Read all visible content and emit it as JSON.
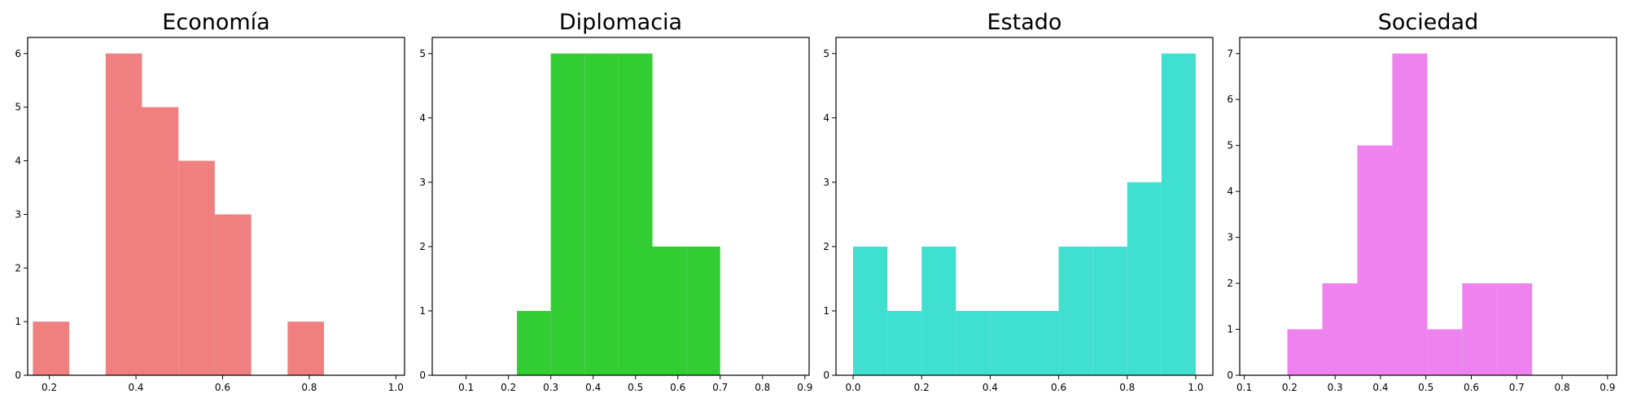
{
  "chart_data": [
    {
      "type": "histogram",
      "title": "Economía",
      "color": "#F08080",
      "xlim": [
        0.15,
        1.02
      ],
      "ylim": [
        0,
        6.3
      ],
      "xticks": [
        0.2,
        0.4,
        0.6,
        0.8,
        1.0
      ],
      "xtick_labels": [
        "0.2",
        "0.4",
        "0.6",
        "0.8",
        "1.0"
      ],
      "yticks": [
        0,
        1,
        2,
        3,
        4,
        5,
        6
      ],
      "ytick_labels": [
        "0",
        "1",
        "2",
        "3",
        "4",
        "5",
        "6"
      ],
      "bins": [
        {
          "x0": 0.162,
          "x1": 0.246,
          "count": 1
        },
        {
          "x0": 0.246,
          "x1": 0.33,
          "count": 0
        },
        {
          "x0": 0.33,
          "x1": 0.414,
          "count": 6
        },
        {
          "x0": 0.414,
          "x1": 0.498,
          "count": 5
        },
        {
          "x0": 0.498,
          "x1": 0.582,
          "count": 4
        },
        {
          "x0": 0.582,
          "x1": 0.666,
          "count": 3
        },
        {
          "x0": 0.666,
          "x1": 0.75,
          "count": 0
        },
        {
          "x0": 0.75,
          "x1": 0.834,
          "count": 1
        }
      ]
    },
    {
      "type": "histogram",
      "title": "Diplomacia",
      "color": "#32CD32",
      "xlim": [
        0.02,
        0.91
      ],
      "ylim": [
        0,
        5.25
      ],
      "xticks": [
        0.1,
        0.2,
        0.3,
        0.4,
        0.5,
        0.6,
        0.7,
        0.8,
        0.9
      ],
      "xtick_labels": [
        "0.1",
        "0.2",
        "0.3",
        "0.4",
        "0.5",
        "0.6",
        "0.7",
        "0.8",
        "0.9"
      ],
      "yticks": [
        0,
        1,
        2,
        3,
        4,
        5
      ],
      "ytick_labels": [
        "0",
        "1",
        "2",
        "3",
        "4",
        "5"
      ],
      "bins": [
        {
          "x0": 0.22,
          "x1": 0.3,
          "count": 1
        },
        {
          "x0": 0.3,
          "x1": 0.38,
          "count": 5
        },
        {
          "x0": 0.38,
          "x1": 0.46,
          "count": 5
        },
        {
          "x0": 0.46,
          "x1": 0.54,
          "count": 5
        },
        {
          "x0": 0.54,
          "x1": 0.62,
          "count": 2
        },
        {
          "x0": 0.62,
          "x1": 0.7,
          "count": 2
        }
      ]
    },
    {
      "type": "histogram",
      "title": "Estado",
      "color": "#40E0D0",
      "xlim": [
        -0.05,
        1.05
      ],
      "ylim": [
        0,
        5.25
      ],
      "xticks": [
        0.0,
        0.2,
        0.4,
        0.6,
        0.8,
        1.0
      ],
      "xtick_labels": [
        "0.0",
        "0.2",
        "0.4",
        "0.6",
        "0.8",
        "1.0"
      ],
      "yticks": [
        0,
        1,
        2,
        3,
        4,
        5
      ],
      "ytick_labels": [
        "0",
        "1",
        "2",
        "3",
        "4",
        "5"
      ],
      "bins": [
        {
          "x0": 0.0,
          "x1": 0.1,
          "count": 2
        },
        {
          "x0": 0.1,
          "x1": 0.2,
          "count": 1
        },
        {
          "x0": 0.2,
          "x1": 0.3,
          "count": 2
        },
        {
          "x0": 0.3,
          "x1": 0.4,
          "count": 1
        },
        {
          "x0": 0.4,
          "x1": 0.5,
          "count": 1
        },
        {
          "x0": 0.5,
          "x1": 0.6,
          "count": 1
        },
        {
          "x0": 0.6,
          "x1": 0.7,
          "count": 2
        },
        {
          "x0": 0.7,
          "x1": 0.8,
          "count": 2
        },
        {
          "x0": 0.8,
          "x1": 0.9,
          "count": 3
        },
        {
          "x0": 0.9,
          "x1": 1.0,
          "count": 5
        }
      ]
    },
    {
      "type": "histogram",
      "title": "Sociedad",
      "color": "#EE82EE",
      "xlim": [
        0.09,
        0.92
      ],
      "ylim": [
        0,
        7.35
      ],
      "xticks": [
        0.1,
        0.2,
        0.3,
        0.4,
        0.5,
        0.6,
        0.7,
        0.8,
        0.9
      ],
      "xtick_labels": [
        "0.1",
        "0.2",
        "0.3",
        "0.4",
        "0.5",
        "0.6",
        "0.7",
        "0.8",
        "0.9"
      ],
      "yticks": [
        0,
        1,
        2,
        3,
        4,
        5,
        6,
        7
      ],
      "ytick_labels": [
        "0",
        "1",
        "2",
        "3",
        "4",
        "5",
        "6",
        "7"
      ],
      "bins": [
        {
          "x0": 0.195,
          "x1": 0.272,
          "count": 1
        },
        {
          "x0": 0.272,
          "x1": 0.349,
          "count": 2
        },
        {
          "x0": 0.349,
          "x1": 0.426,
          "count": 5
        },
        {
          "x0": 0.426,
          "x1": 0.503,
          "count": 7
        },
        {
          "x0": 0.503,
          "x1": 0.58,
          "count": 1
        },
        {
          "x0": 0.58,
          "x1": 0.657,
          "count": 2
        },
        {
          "x0": 0.657,
          "x1": 0.734,
          "count": 2
        }
      ]
    }
  ]
}
